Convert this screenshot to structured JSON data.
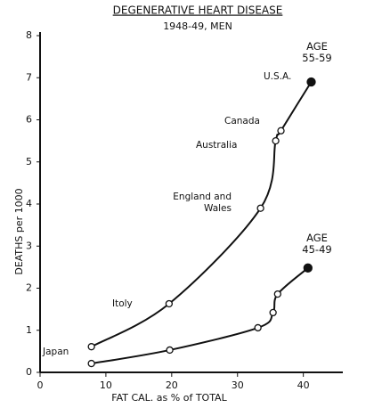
{
  "chart_data": {
    "type": "line",
    "title": "DEGENERATIVE HEART DISEASE",
    "subtitle": "1948-49, MEN",
    "xlabel": "FAT CAL. as % of TOTAL",
    "ylabel": "DEATHS per 1000",
    "xlim": [
      0,
      46
    ],
    "ylim": [
      0,
      8
    ],
    "xticks": [
      0,
      10,
      20,
      30,
      40
    ],
    "yticks": [
      0,
      1,
      2,
      3,
      4,
      5,
      6,
      7,
      8
    ],
    "series": [
      {
        "name": "AGE 55-59",
        "color": "#111111",
        "x": [
          7.8,
          19.6,
          33.5,
          35.8,
          36.6,
          41.2
        ],
        "values": [
          0.61,
          1.63,
          3.9,
          5.5,
          5.74,
          6.9
        ],
        "point_labels": [
          "Japan",
          "Itoly",
          "England and Wales",
          "Australia",
          "Canada",
          "U.S.A."
        ]
      },
      {
        "name": "AGE 45-49",
        "color": "#111111",
        "x": [
          7.8,
          19.7,
          33.1,
          35.4,
          36.1,
          40.7
        ],
        "values": [
          0.21,
          0.53,
          1.06,
          1.42,
          1.86,
          2.48
        ]
      }
    ]
  }
}
